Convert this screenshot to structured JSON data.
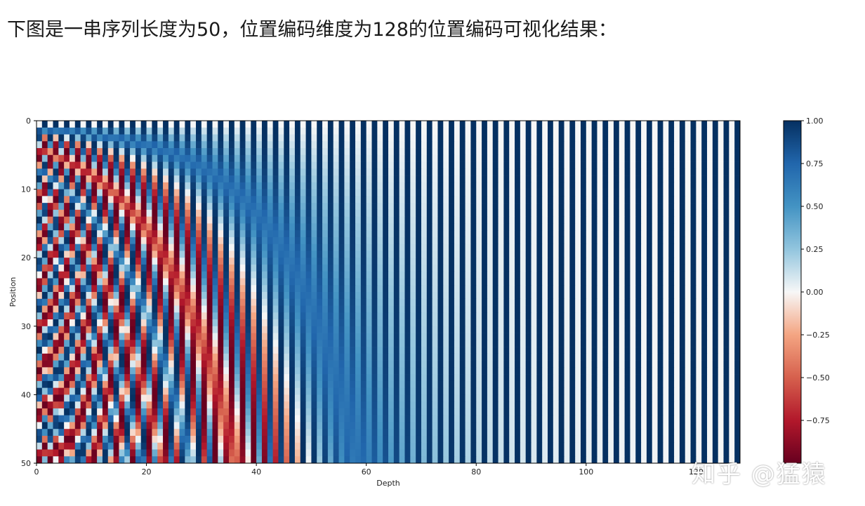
{
  "caption": "下图是一串序列长度为50，位置编码维度为128的位置编码可视化结果：",
  "watermark": "知乎 @猛猿",
  "chart_data": {
    "type": "heatmap",
    "title": "",
    "xlabel": "Depth",
    "ylabel": "Position",
    "rows": 50,
    "cols": 128,
    "xlim": [
      0,
      128
    ],
    "ylim": [
      50,
      0
    ],
    "xticks": [
      0,
      20,
      40,
      60,
      80,
      100,
      120
    ],
    "yticks": [
      0,
      10,
      20,
      30,
      40,
      50
    ],
    "colormap": "RdBu",
    "value_range": [
      -1,
      1
    ],
    "colorbar_ticks": [
      1.0,
      0.75,
      0.5,
      0.25,
      0.0,
      -0.25,
      -0.5,
      -0.75
    ],
    "colorbar_tick_labels": [
      "1.00",
      "0.75",
      "0.50",
      "0.25",
      "0.00",
      "−0.25",
      "−0.50",
      "−0.75"
    ],
    "encoding": "sinusoidal positional encoding: even depth = sin(pos / 10000^(i/128)), odd depth = cos(pos / 10000^((i-1)/128))"
  }
}
